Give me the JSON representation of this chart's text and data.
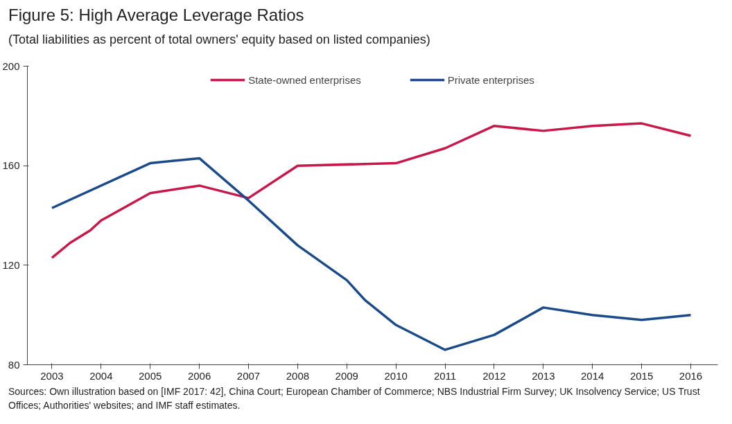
{
  "chart_data": {
    "type": "line",
    "title": "Figure 5: High Average Leverage Ratios",
    "subtitle": "(Total liabilities as percent of total owners' equity based on listed companies)",
    "annotations": [
      "Sources: Own illustration based on [IMF 2017: 42], China Court; European Chamber of Commerce; NBS Industrial Firm Survey; UK Insolvency Service; US Trust Offices; Authorities' websites; and IMF staff estimates."
    ],
    "series": [
      {
        "name": "State-owned enterprises",
        "color": "#c8184a",
        "x": [
          2003,
          2003.37,
          2003.78,
          2004,
          2005,
          2006,
          2007,
          2008,
          2010,
          2011,
          2012,
          2013,
          2014,
          2015,
          2016
        ],
        "values": [
          123,
          129,
          134,
          138,
          149,
          152,
          147,
          160,
          161,
          167,
          176,
          174,
          176,
          177,
          172
        ]
      },
      {
        "name": "Private enterprises",
        "color": "#1a4a8a",
        "x": [
          2003,
          2005,
          2006,
          2007,
          2008,
          2009,
          2009.37,
          2010,
          2011,
          2012,
          2013,
          2014,
          2015,
          2016
        ],
        "values": [
          143,
          161,
          163,
          146,
          128,
          114,
          106,
          96,
          86,
          92,
          103,
          100,
          98,
          100
        ]
      }
    ],
    "xlim": [
      2002.5,
      2016.55
    ],
    "xticks": [
      2003,
      2004,
      2005,
      2006,
      2007,
      2008,
      2009,
      2010,
      2011,
      2012,
      2013,
      2014,
      2015,
      2016
    ],
    "ylim": [
      80,
      200
    ],
    "yticks": [
      80,
      120,
      160,
      200
    ],
    "grid": false,
    "legend": "top",
    "marker": "none",
    "line_style": "solid"
  }
}
